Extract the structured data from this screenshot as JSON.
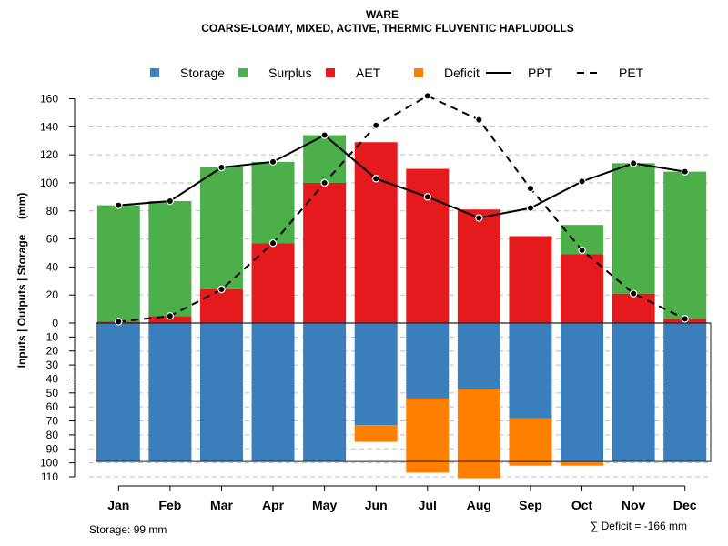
{
  "chart_data": {
    "type": "bar",
    "title": "WARE",
    "subtitle": "COARSE-LOAMY, MIXED, ACTIVE, THERMIC FLUVENTIC HAPLUDOLLS",
    "ylabel": "Inputs | Outputs | Storage     (mm)",
    "categories": [
      "Jan",
      "Feb",
      "Mar",
      "Apr",
      "May",
      "Jun",
      "Jul",
      "Aug",
      "Sep",
      "Oct",
      "Nov",
      "Dec"
    ],
    "upper_ylim": [
      0,
      170
    ],
    "upper_ticks": [
      "0",
      "20",
      "40",
      "60",
      "80",
      "100",
      "120",
      "140",
      "160"
    ],
    "lower_ylim": [
      0,
      110
    ],
    "lower_ticks": [
      "10",
      "20",
      "30",
      "40",
      "50",
      "60",
      "70",
      "80",
      "90",
      "100",
      "110"
    ],
    "legend": [
      {
        "name": "Storage",
        "color": "#3a7ebb",
        "kind": "box"
      },
      {
        "name": "Surplus",
        "color": "#4daf4a",
        "kind": "box"
      },
      {
        "name": "AET",
        "color": "#e41a1c",
        "kind": "box"
      },
      {
        "name": "Deficit",
        "color": "#ff7f00",
        "kind": "box"
      },
      {
        "name": "PPT",
        "color": "#000000",
        "kind": "solid"
      },
      {
        "name": "PET",
        "color": "#000000",
        "kind": "dashed"
      }
    ],
    "series": [
      {
        "name": "AET",
        "values": [
          1,
          5,
          24,
          57,
          100,
          129,
          110,
          81,
          62,
          49,
          21,
          3
        ]
      },
      {
        "name": "Surplus",
        "values": [
          83,
          82,
          87,
          58,
          34,
          0,
          0,
          0,
          0,
          21,
          93,
          105
        ]
      },
      {
        "name": "PPT",
        "values": [
          84,
          87,
          111,
          115,
          134,
          103,
          90,
          75,
          82,
          101,
          114,
          108
        ]
      },
      {
        "name": "PET",
        "values": [
          1,
          5,
          24,
          57,
          100,
          141,
          162,
          145,
          96,
          52,
          21,
          3
        ]
      },
      {
        "name": "Storage",
        "values": [
          99,
          99,
          99,
          99,
          99,
          73,
          54,
          47,
          68,
          99,
          99,
          99
        ]
      },
      {
        "name": "Deficit",
        "values": [
          0,
          0,
          0,
          0,
          0,
          12,
          53,
          64,
          34,
          3,
          0,
          0
        ]
      }
    ],
    "storage_note": "Storage: 99 mm",
    "deficit_note": "∑ Deficit = -166 mm"
  }
}
